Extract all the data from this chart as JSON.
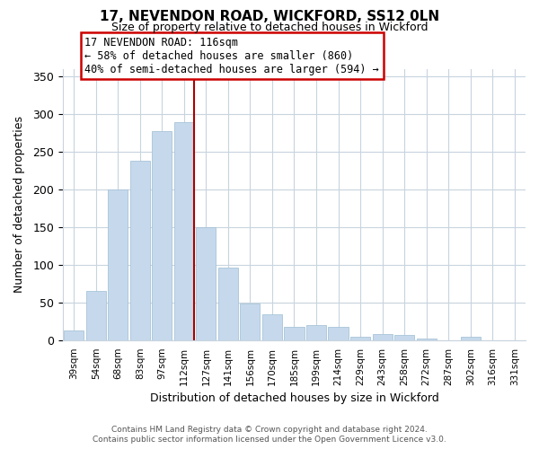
{
  "title": "17, NEVENDON ROAD, WICKFORD, SS12 0LN",
  "subtitle": "Size of property relative to detached houses in Wickford",
  "xlabel": "Distribution of detached houses by size in Wickford",
  "ylabel": "Number of detached properties",
  "bar_labels": [
    "39sqm",
    "54sqm",
    "68sqm",
    "83sqm",
    "97sqm",
    "112sqm",
    "127sqm",
    "141sqm",
    "156sqm",
    "170sqm",
    "185sqm",
    "199sqm",
    "214sqm",
    "229sqm",
    "243sqm",
    "258sqm",
    "272sqm",
    "287sqm",
    "302sqm",
    "316sqm",
    "331sqm"
  ],
  "bar_values": [
    13,
    65,
    200,
    238,
    278,
    290,
    150,
    97,
    49,
    35,
    18,
    20,
    18,
    5,
    8,
    7,
    2,
    0,
    5,
    0,
    0
  ],
  "bar_color": "#c6d9ec",
  "bar_edge_color": "#a8c4d8",
  "vline_index": 5,
  "vline_color": "#aa0000",
  "ylim": [
    0,
    360
  ],
  "yticks": [
    0,
    50,
    100,
    150,
    200,
    250,
    300,
    350
  ],
  "annotation_title": "17 NEVENDON ROAD: 116sqm",
  "annotation_line1": "← 58% of detached houses are smaller (860)",
  "annotation_line2": "40% of semi-detached houses are larger (594) →",
  "footer_line1": "Contains HM Land Registry data © Crown copyright and database right 2024.",
  "footer_line2": "Contains public sector information licensed under the Open Government Licence v3.0.",
  "background_color": "#ffffff",
  "grid_color": "#c8d4de"
}
